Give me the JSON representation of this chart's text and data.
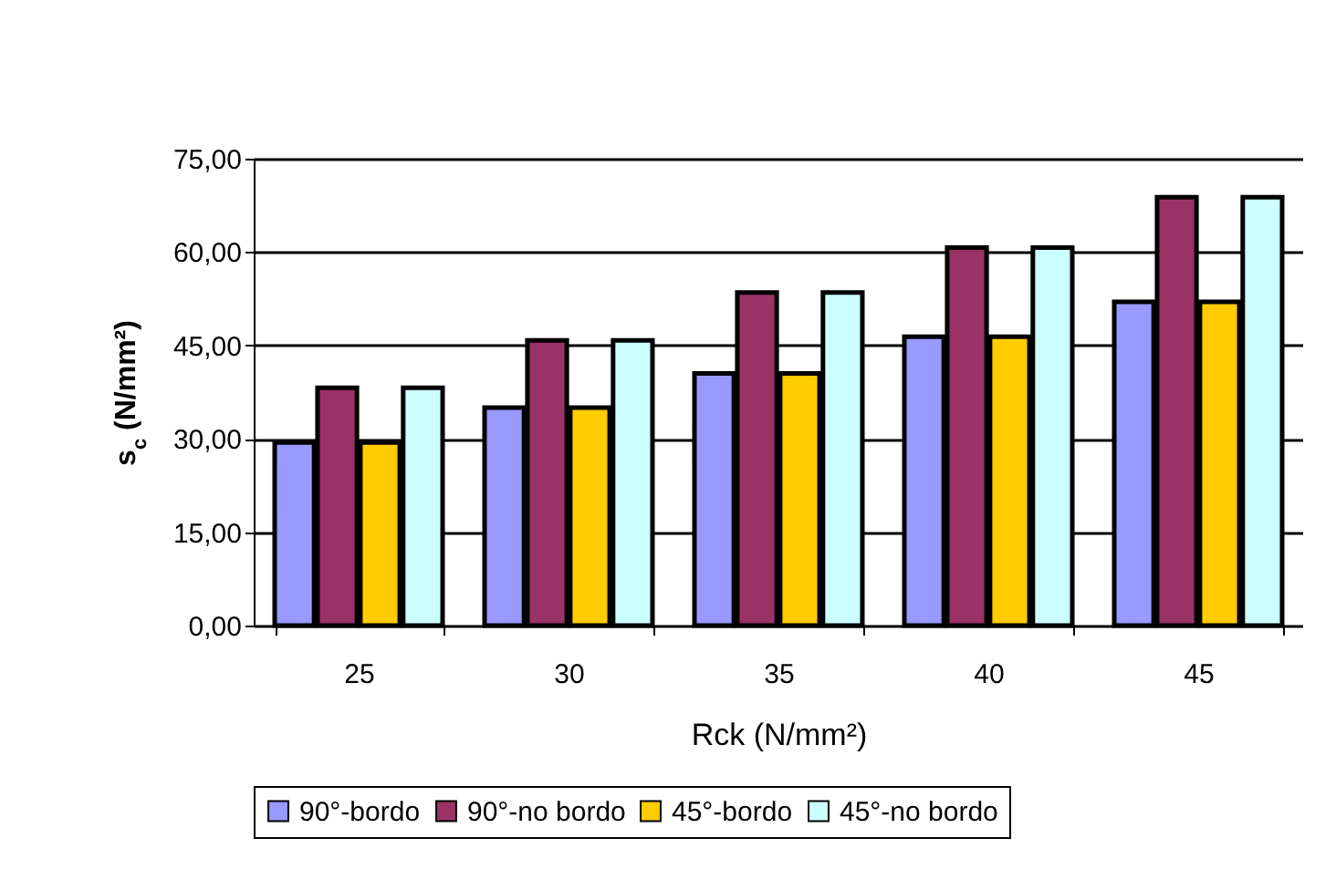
{
  "chart_data": {
    "type": "bar",
    "xlabel": "Rck (N/mm²)",
    "ylabel": "s$_{c}$ (N/mm²)",
    "categories": [
      "25",
      "30",
      "35",
      "40",
      "45"
    ],
    "series": [
      {
        "name": "90°-bordo",
        "color": "#9999ff",
        "values": [
          29.4,
          35.0,
          40.5,
          46.4,
          52.0
        ]
      },
      {
        "name": "90°-no bordo",
        "color": "#993366",
        "values": [
          38.2,
          45.8,
          53.5,
          60.7,
          68.8
        ]
      },
      {
        "name": "45°-bordo",
        "color": "#ffcc00",
        "values": [
          29.4,
          35.0,
          40.5,
          46.4,
          52.0
        ]
      },
      {
        "name": "45°-no bordo",
        "color": "#ccffff",
        "values": [
          38.2,
          45.8,
          53.5,
          60.7,
          68.8
        ]
      }
    ],
    "ylim": [
      0,
      75
    ],
    "yticks": [
      {
        "value": 0,
        "label": "0,00"
      },
      {
        "value": 15,
        "label": "15,00"
      },
      {
        "value": 30,
        "label": "30,00"
      },
      {
        "value": 45,
        "label": "45,00"
      },
      {
        "value": 60,
        "label": "60,00"
      },
      {
        "value": 75,
        "label": "75,00"
      }
    ],
    "grid": "y",
    "legend": "bottom"
  }
}
